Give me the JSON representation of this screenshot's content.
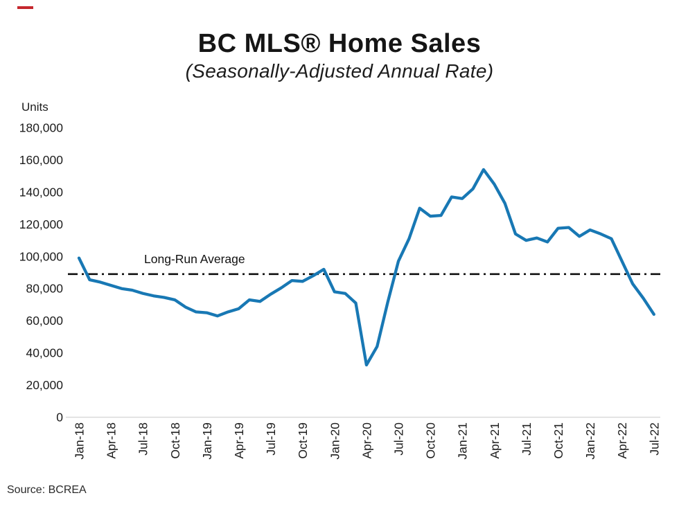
{
  "header": {
    "title": "BC MLS® Home Sales",
    "subtitle": "(Seasonally-Adjusted Annual Rate)"
  },
  "footer": {
    "source": "Source: BCREA"
  },
  "colors": {
    "line": "#1878b4",
    "reference_line": "#111111",
    "axis_line": "#d9d9d9",
    "text": "#1c1c1c",
    "red_mark": "#c5272d"
  },
  "chart_data": {
    "type": "line",
    "title": "BC MLS® Home Sales",
    "subtitle": "(Seasonally-Adjusted Annual Rate)",
    "ylabel": "Units",
    "xlabel": "",
    "ylim": [
      0,
      180000
    ],
    "grid": "off",
    "legend": "none",
    "reference_line": {
      "label": "Long-Run Average",
      "value": 89000,
      "style": "dash-dot"
    },
    "y_tick_values": [
      0,
      20000,
      40000,
      60000,
      80000,
      100000,
      120000,
      140000,
      160000,
      180000
    ],
    "y_tick_labels": [
      "0",
      "20,000",
      "40,000",
      "60,000",
      "80,000",
      "100,000",
      "120,000",
      "140,000",
      "160,000",
      "180,000"
    ],
    "x_tick_labels": [
      "Jan-18",
      "Apr-18",
      "Jul-18",
      "Oct-18",
      "Jan-19",
      "Apr-19",
      "Jul-19",
      "Oct-19",
      "Jan-20",
      "Apr-20",
      "Jul-20",
      "Oct-20",
      "Jan-21",
      "Apr-21",
      "Jul-21",
      "Oct-21",
      "Jan-22",
      "Apr-22",
      "Jul-22"
    ],
    "x": [
      "Jan-18",
      "Feb-18",
      "Mar-18",
      "Apr-18",
      "May-18",
      "Jun-18",
      "Jul-18",
      "Aug-18",
      "Sep-18",
      "Oct-18",
      "Nov-18",
      "Dec-18",
      "Jan-19",
      "Feb-19",
      "Mar-19",
      "Apr-19",
      "May-19",
      "Jun-19",
      "Jul-19",
      "Aug-19",
      "Sep-19",
      "Oct-19",
      "Nov-19",
      "Dec-19",
      "Jan-20",
      "Feb-20",
      "Mar-20",
      "Apr-20",
      "May-20",
      "Jun-20",
      "Jul-20",
      "Aug-20",
      "Sep-20",
      "Oct-20",
      "Nov-20",
      "Dec-20",
      "Jan-21",
      "Feb-21",
      "Mar-21",
      "Apr-21",
      "May-21",
      "Jun-21",
      "Jul-21",
      "Aug-21",
      "Sep-21",
      "Oct-21",
      "Nov-21",
      "Dec-21",
      "Jan-22",
      "Feb-22",
      "Mar-22",
      "Apr-22",
      "May-22",
      "Jun-22",
      "Jul-22"
    ],
    "series": [
      {
        "name": "BC MLS home sales, seasonally-adjusted annual rate",
        "color": "#1878b4",
        "values": [
          99000,
          85500,
          84000,
          82000,
          80000,
          79000,
          77000,
          75500,
          74500,
          73000,
          68500,
          65500,
          65000,
          63000,
          65500,
          67500,
          73000,
          72000,
          76500,
          80500,
          85000,
          84500,
          88000,
          92000,
          78000,
          77000,
          71000,
          32500,
          44000,
          71500,
          97000,
          111000,
          130000,
          125000,
          125500,
          137000,
          136000,
          142000,
          154000,
          145000,
          133000,
          114000,
          110000,
          111500,
          109000,
          117500,
          118000,
          112500,
          116500,
          114000,
          111000,
          97000,
          83000,
          74000,
          64000
        ]
      }
    ]
  }
}
